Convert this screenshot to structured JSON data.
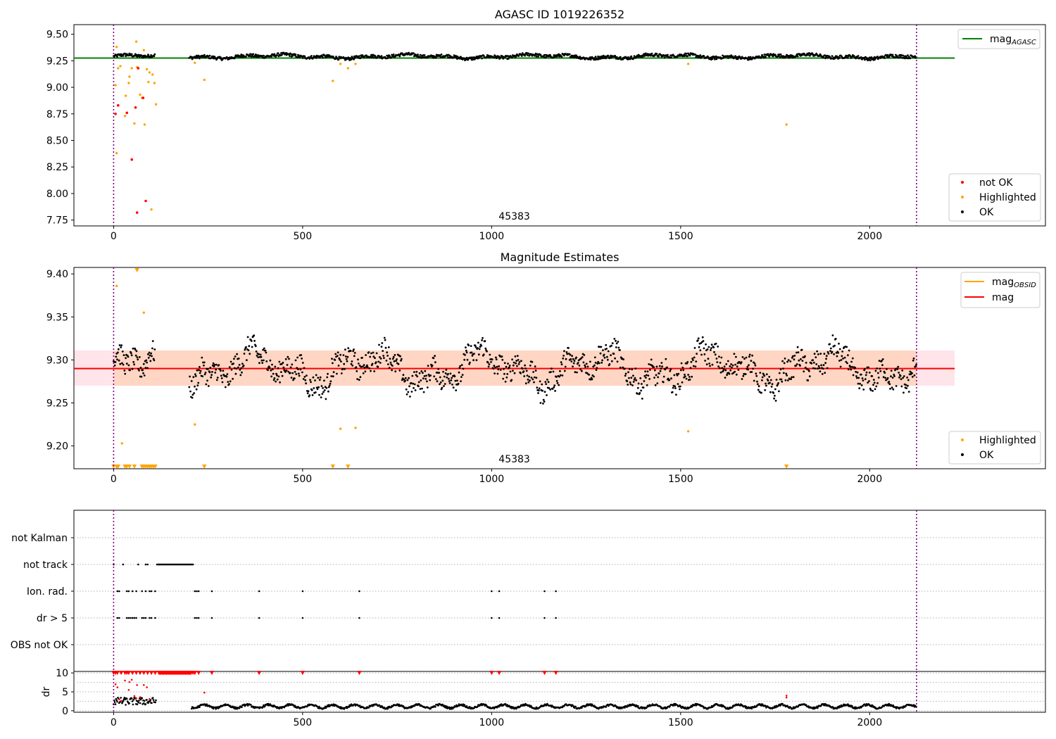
{
  "figure": {
    "title_top": "AGASC ID 1019226352",
    "title_middle": "Magnitude Estimates"
  },
  "colors": {
    "ok": "#000000",
    "highlighted": "#ffa500",
    "not_ok": "#ff0000",
    "mag_agasc": "#008000",
    "mag": "#ff0000",
    "mag_obsid": "#ffa500",
    "band_fill": "#ffb3bf",
    "band_fill_obsid": "#ffc08c",
    "boundary": "#800080",
    "grid": "#b0b0b0"
  },
  "chart_data": [
    {
      "id": "top",
      "type": "scatter",
      "title": "AGASC ID 1019226352",
      "xlim": [
        -105,
        2465
      ],
      "ylim": [
        7.695,
        9.59
      ],
      "xticks": [
        0,
        500,
        1000,
        1500,
        2000
      ],
      "yticks": [
        7.75,
        8.0,
        8.25,
        8.5,
        8.75,
        9.0,
        9.25,
        9.5
      ],
      "ytick_labels": [
        "7.75",
        "8.00",
        "8.25",
        "8.50",
        "8.75",
        "9.00",
        "9.25",
        "9.50"
      ],
      "obsid_label": "45383",
      "obsid_label_x": 1060,
      "boundaries_x": [
        0,
        2124
      ],
      "mag_agasc": 9.275,
      "mag_agasc_xrange": [
        -105,
        2225
      ],
      "legend_lines": [
        {
          "label": "mag",
          "sub": "AGASC",
          "color": "#008000"
        }
      ],
      "legend_markers": [
        {
          "label": "not OK",
          "color": "#ff0000"
        },
        {
          "label": "Highlighted",
          "color": "#ffa500"
        },
        {
          "label": "OK",
          "color": "#000000"
        }
      ],
      "ok_segments": [
        [
          0,
          110
        ],
        [
          200,
          2124
        ]
      ],
      "ok_level": 9.29,
      "highlighted": [
        [
          5,
          9.02
        ],
        [
          8,
          8.38
        ],
        [
          8,
          9.38
        ],
        [
          12,
          9.18
        ],
        [
          18,
          9.2
        ],
        [
          30,
          8.73
        ],
        [
          32,
          8.92
        ],
        [
          40,
          9.04
        ],
        [
          42,
          9.1
        ],
        [
          48,
          9.18
        ],
        [
          55,
          8.66
        ],
        [
          60,
          9.43
        ],
        [
          62,
          9.19
        ],
        [
          70,
          8.93
        ],
        [
          75,
          8.9
        ],
        [
          80,
          9.35
        ],
        [
          82,
          8.65
        ],
        [
          88,
          9.17
        ],
        [
          92,
          9.05
        ],
        [
          95,
          9.14
        ],
        [
          100,
          7.85
        ],
        [
          103,
          9.12
        ],
        [
          108,
          9.04
        ],
        [
          112,
          8.84
        ],
        [
          215,
          9.23
        ],
        [
          240,
          9.07
        ],
        [
          580,
          9.06
        ],
        [
          600,
          9.22
        ],
        [
          620,
          9.18
        ],
        [
          640,
          9.22
        ],
        [
          1520,
          9.22
        ],
        [
          1780,
          8.65
        ]
      ],
      "not_ok": [
        [
          5,
          8.75
        ],
        [
          12,
          8.83
        ],
        [
          35,
          8.76
        ],
        [
          48,
          8.32
        ],
        [
          58,
          8.81
        ],
        [
          62,
          7.82
        ],
        [
          65,
          9.18
        ],
        [
          78,
          8.9
        ],
        [
          85,
          7.93
        ]
      ]
    },
    {
      "id": "middle",
      "type": "scatter",
      "title": "Magnitude Estimates",
      "xlim": [
        -105,
        2465
      ],
      "ylim": [
        9.1735,
        9.4075
      ],
      "xticks": [
        0,
        500,
        1000,
        1500,
        2000
      ],
      "yticks": [
        9.2,
        9.25,
        9.3,
        9.35,
        9.4
      ],
      "ytick_labels": [
        "9.20",
        "9.25",
        "9.30",
        "9.35",
        "9.40"
      ],
      "obsid_label": "45383",
      "obsid_label_x": 1060,
      "boundaries_x": [
        0,
        2124
      ],
      "mag": 9.29,
      "mag_band": [
        9.27,
        9.311
      ],
      "mag_xrange": [
        -105,
        2225
      ],
      "legend_lines": [
        {
          "label": "mag",
          "sub": "OBSID",
          "color": "#ffa500"
        },
        {
          "label": "mag",
          "sub": "",
          "color": "#ff0000"
        }
      ],
      "legend_markers": [
        {
          "label": "Highlighted",
          "color": "#ffa500"
        },
        {
          "label": "OK",
          "color": "#000000"
        }
      ],
      "ok_segments": [
        [
          0,
          110
        ],
        [
          200,
          2124
        ]
      ],
      "ok_mean": 9.29,
      "highlighted": [
        [
          8,
          9.386
        ],
        [
          22,
          9.203
        ],
        [
          62,
          9.405
        ],
        [
          80,
          9.355
        ],
        [
          215,
          9.225
        ],
        [
          600,
          9.22
        ],
        [
          640,
          9.221
        ],
        [
          1520,
          9.217
        ]
      ],
      "clipped_low_x": [
        0,
        8,
        12,
        30,
        35,
        42,
        55,
        75,
        80,
        85,
        90,
        95,
        100,
        105,
        110,
        240,
        580,
        620,
        1780
      ]
    },
    {
      "id": "bottom",
      "type": "scatter",
      "xlim": [
        -105,
        2465
      ],
      "xticks": [
        0,
        500,
        1000,
        1500,
        2000
      ],
      "boundaries_x": [
        0,
        2124
      ],
      "flag_rows": [
        "not Kalman",
        "not track",
        "Ion. rad.",
        "dr > 5",
        "OBS not OK"
      ],
      "flag_not_track": [
        0,
        25,
        65,
        85,
        90
      ],
      "flag_not_track_run": [
        115,
        210
      ],
      "flag_ion_rad": [
        10,
        15,
        35,
        40,
        50,
        60,
        75,
        85,
        95,
        100,
        110,
        215,
        220,
        225,
        260,
        385,
        500,
        650,
        1000,
        1020,
        1140,
        1170
      ],
      "flag_dr5": [
        10,
        15,
        35,
        40,
        45,
        50,
        55,
        60,
        75,
        80,
        85,
        95,
        100,
        110,
        215,
        220,
        225,
        260,
        385,
        500,
        650,
        1000,
        1020,
        1140,
        1170
      ],
      "dr_ylabel": "dr",
      "dr_ylim": [
        -0.4,
        10.4
      ],
      "dr_yticks": [
        0,
        5,
        10
      ],
      "dr_outliers": [
        [
          5,
          7.0
        ],
        [
          10,
          6.2
        ],
        [
          15,
          3.0
        ],
        [
          20,
          2.6
        ],
        [
          30,
          8.0
        ],
        [
          40,
          5.5
        ],
        [
          42,
          7.6
        ],
        [
          48,
          8.2
        ],
        [
          55,
          3.9
        ],
        [
          60,
          3.3
        ],
        [
          62,
          6.8
        ],
        [
          70,
          3.6
        ],
        [
          80,
          6.8
        ],
        [
          88,
          6.2
        ],
        [
          95,
          3.1
        ],
        [
          240,
          4.8
        ],
        [
          1780,
          3.5
        ],
        [
          1780,
          4.0
        ]
      ],
      "dr_clipped_x": [
        0,
        5,
        10,
        20,
        30,
        35,
        40,
        50,
        60,
        70,
        80,
        90,
        100,
        110,
        120,
        130,
        140,
        150,
        160,
        170,
        180,
        190,
        200,
        210,
        215,
        225,
        260,
        385,
        500,
        650,
        1000,
        1020,
        1140,
        1170
      ]
    }
  ]
}
